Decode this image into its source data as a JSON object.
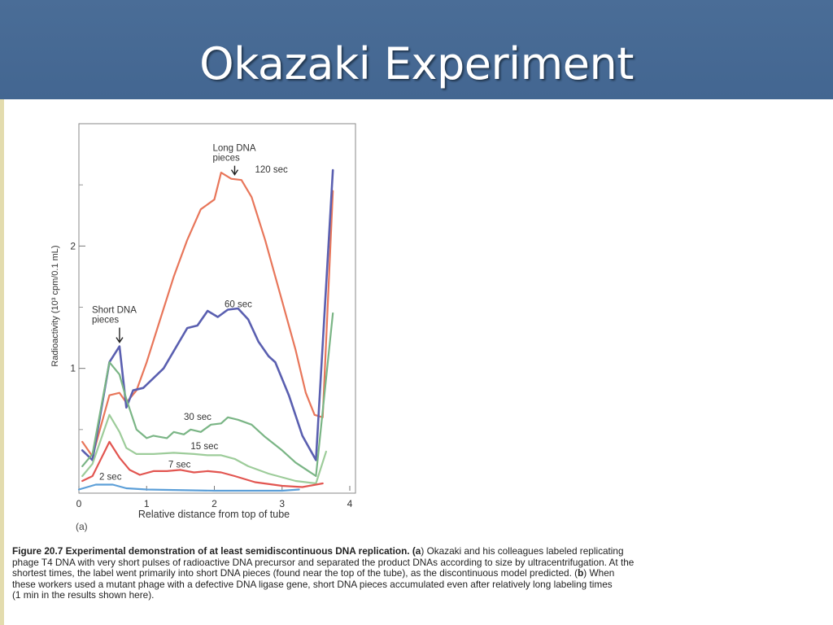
{
  "slide": {
    "title": "Okazaki Experiment"
  },
  "figure": {
    "panel_label": "(a)",
    "caption_lines": [
      {
        "parts": [
          {
            "text": "Figure 20.7   Experimental demonstration of at least semidiscontinuous DNA replication. (",
            "bold": true
          },
          {
            "text": "a",
            "bold": true
          },
          {
            "text": ") Okazaki and his colleagues labeled replicating",
            "bold": false
          }
        ]
      },
      {
        "parts": [
          {
            "text": "phage T4 DNA with very short pulses of radioactive DNA precursor and separated the product DNAs according to size by ultracentrifugation. At the",
            "bold": false
          }
        ]
      },
      {
        "parts": [
          {
            "text": "shortest times, the label went primarily into short DNA pieces (found near the top of the tube), as the discontinuous model predicted. (",
            "bold": false
          },
          {
            "text": "b",
            "bold": true
          },
          {
            "text": ") When",
            "bold": false
          }
        ]
      },
      {
        "parts": [
          {
            "text": "these workers used a mutant phage with a defective DNA ligase gene, short DNA pieces accumulated even after relatively long labeling times",
            "bold": false
          }
        ]
      },
      {
        "parts": [
          {
            "text": "(1 min in the results shown here).",
            "bold": false
          }
        ]
      }
    ]
  },
  "chart_data": {
    "type": "line",
    "title": "",
    "xlabel": "Relative distance from top of tube",
    "ylabel": "Radioactivity (10³ cpm/0.1 mL)",
    "xlim": [
      0,
      4
    ],
    "ylim": [
      0,
      3
    ],
    "xticks": [
      0,
      1,
      2,
      3,
      4
    ],
    "yticks": [
      1,
      2
    ],
    "grid": false,
    "series": [
      {
        "name": "120 sec",
        "color": "#e8765a",
        "points": [
          [
            0.05,
            0.4
          ],
          [
            0.2,
            0.28
          ],
          [
            0.45,
            0.78
          ],
          [
            0.6,
            0.8
          ],
          [
            0.7,
            0.72
          ],
          [
            0.85,
            0.82
          ],
          [
            1.0,
            1.05
          ],
          [
            1.2,
            1.4
          ],
          [
            1.4,
            1.75
          ],
          [
            1.6,
            2.05
          ],
          [
            1.8,
            2.3
          ],
          [
            2.0,
            2.38
          ],
          [
            2.1,
            2.6
          ],
          [
            2.25,
            2.55
          ],
          [
            2.4,
            2.54
          ],
          [
            2.55,
            2.4
          ],
          [
            2.75,
            2.05
          ],
          [
            3.0,
            1.55
          ],
          [
            3.2,
            1.15
          ],
          [
            3.35,
            0.8
          ],
          [
            3.48,
            0.62
          ],
          [
            3.6,
            0.6
          ],
          [
            3.75,
            2.45
          ]
        ]
      },
      {
        "name": "60 sec",
        "color": "#5a5fb0",
        "points": [
          [
            0.05,
            0.33
          ],
          [
            0.2,
            0.25
          ],
          [
            0.45,
            1.05
          ],
          [
            0.6,
            1.18
          ],
          [
            0.7,
            0.68
          ],
          [
            0.8,
            0.82
          ],
          [
            0.95,
            0.84
          ],
          [
            1.25,
            1.0
          ],
          [
            1.6,
            1.33
          ],
          [
            1.75,
            1.35
          ],
          [
            1.9,
            1.47
          ],
          [
            2.05,
            1.42
          ],
          [
            2.2,
            1.48
          ],
          [
            2.35,
            1.49
          ],
          [
            2.5,
            1.4
          ],
          [
            2.65,
            1.22
          ],
          [
            2.8,
            1.1
          ],
          [
            2.9,
            1.05
          ],
          [
            3.1,
            0.78
          ],
          [
            3.3,
            0.45
          ],
          [
            3.5,
            0.25
          ],
          [
            3.75,
            2.62
          ]
        ]
      },
      {
        "name": "30 sec",
        "color": "#7ab585",
        "points": [
          [
            0.05,
            0.2
          ],
          [
            0.2,
            0.3
          ],
          [
            0.45,
            1.05
          ],
          [
            0.6,
            0.95
          ],
          [
            0.7,
            0.75
          ],
          [
            0.85,
            0.5
          ],
          [
            1.0,
            0.43
          ],
          [
            1.1,
            0.45
          ],
          [
            1.3,
            0.43
          ],
          [
            1.4,
            0.48
          ],
          [
            1.55,
            0.46
          ],
          [
            1.65,
            0.5
          ],
          [
            1.8,
            0.48
          ],
          [
            1.95,
            0.54
          ],
          [
            2.1,
            0.55
          ],
          [
            2.2,
            0.6
          ],
          [
            2.35,
            0.58
          ],
          [
            2.55,
            0.54
          ],
          [
            2.75,
            0.44
          ],
          [
            3.0,
            0.33
          ],
          [
            3.2,
            0.23
          ],
          [
            3.5,
            0.12
          ],
          [
            3.75,
            1.45
          ]
        ]
      },
      {
        "name": "15 sec",
        "color": "#9dcc9a",
        "points": [
          [
            0.05,
            0.12
          ],
          [
            0.2,
            0.22
          ],
          [
            0.45,
            0.62
          ],
          [
            0.6,
            0.48
          ],
          [
            0.7,
            0.35
          ],
          [
            0.85,
            0.3
          ],
          [
            1.1,
            0.3
          ],
          [
            1.4,
            0.31
          ],
          [
            1.7,
            0.3
          ],
          [
            1.9,
            0.29
          ],
          [
            2.1,
            0.29
          ],
          [
            2.3,
            0.26
          ],
          [
            2.5,
            0.2
          ],
          [
            2.8,
            0.14
          ],
          [
            3.2,
            0.08
          ],
          [
            3.5,
            0.06
          ],
          [
            3.65,
            0.32
          ]
        ]
      },
      {
        "name": "7 sec",
        "color": "#e25550",
        "points": [
          [
            0.05,
            0.08
          ],
          [
            0.2,
            0.12
          ],
          [
            0.45,
            0.4
          ],
          [
            0.6,
            0.27
          ],
          [
            0.75,
            0.17
          ],
          [
            0.9,
            0.13
          ],
          [
            1.1,
            0.16
          ],
          [
            1.3,
            0.16
          ],
          [
            1.5,
            0.17
          ],
          [
            1.7,
            0.15
          ],
          [
            1.9,
            0.16
          ],
          [
            2.1,
            0.15
          ],
          [
            2.3,
            0.12
          ],
          [
            2.6,
            0.07
          ],
          [
            3.0,
            0.04
          ],
          [
            3.3,
            0.03
          ],
          [
            3.6,
            0.06
          ]
        ]
      },
      {
        "name": "2 sec",
        "color": "#5c9fd8",
        "points": [
          [
            0.0,
            0.01
          ],
          [
            0.25,
            0.05
          ],
          [
            0.5,
            0.05
          ],
          [
            0.7,
            0.02
          ],
          [
            1.0,
            0.01
          ],
          [
            2.0,
            0.0
          ],
          [
            3.0,
            0.0
          ],
          [
            3.25,
            0.01
          ]
        ]
      }
    ],
    "annotations": [
      {
        "label_lines": [
          "Long DNA",
          "pieces"
        ],
        "arrow_to": [
          2.3,
          2.55
        ]
      },
      {
        "label_lines": [
          "Short DNA",
          "pieces"
        ],
        "arrow_to": [
          0.6,
          1.18
        ]
      }
    ]
  }
}
